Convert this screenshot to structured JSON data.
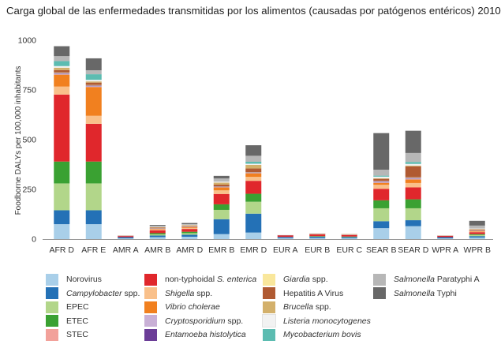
{
  "chart_data": {
    "type": "bar",
    "stacked": true,
    "title": "Carga global de las enfermedades transmitidas por los alimentos (causadas por patógenos entéricos) 2010",
    "ylabel": "Foodborne DALYs per 100,000 inhabitants",
    "xlabel": "",
    "ylim": [
      0,
      1000
    ],
    "yticks": [
      "0",
      "250",
      "500",
      "750",
      "1000"
    ],
    "categories": [
      "AFR D",
      "AFR E",
      "AMR A",
      "AMR B",
      "AMR D",
      "EMR B",
      "EMR D",
      "EUR A",
      "EUR B",
      "EUR C",
      "SEAR B",
      "SEAR D",
      "WPR A",
      "WPR B"
    ],
    "series": [
      {
        "name": "Norovirus",
        "color": "#a9cfe9",
        "values": [
          75,
          75,
          4,
          10,
          12,
          25,
          33,
          5,
          6,
          5,
          55,
          65,
          4,
          8
        ]
      },
      {
        "name": "Campylobacter spp.",
        "color": "#2471b6",
        "values": [
          70,
          70,
          6,
          8,
          10,
          75,
          95,
          6,
          7,
          6,
          35,
          30,
          6,
          7
        ]
      },
      {
        "name": "EPEC",
        "color": "#b2d68a",
        "values": [
          135,
          135,
          0,
          6,
          8,
          47,
          60,
          0,
          1,
          1,
          65,
          60,
          0,
          6
        ]
      },
      {
        "name": "ETEC",
        "color": "#3aa132",
        "values": [
          110,
          110,
          0,
          6,
          7,
          28,
          40,
          0,
          1,
          1,
          40,
          45,
          0,
          4
        ]
      },
      {
        "name": "STEC",
        "color": "#f2a19a",
        "values": [
          0,
          0,
          0,
          0,
          0,
          0,
          0,
          0,
          0,
          0,
          0,
          0,
          0,
          0
        ]
      },
      {
        "name": "non-typhoidal S. enterica",
        "color": "#e0272c",
        "values": [
          337,
          190,
          6,
          14,
          14,
          52,
          65,
          8,
          9,
          8,
          58,
          60,
          7,
          10
        ]
      },
      {
        "name": "Shigella spp.",
        "color": "#f9c08a",
        "values": [
          40,
          40,
          0,
          4,
          5,
          18,
          20,
          0,
          1,
          1,
          20,
          22,
          0,
          3
        ]
      },
      {
        "name": "Vibrio cholerae",
        "color": "#f1801f",
        "values": [
          60,
          145,
          0,
          3,
          4,
          15,
          18,
          0,
          0,
          0,
          10,
          18,
          0,
          3
        ]
      },
      {
        "name": "Cryptosporidium spp.",
        "color": "#c9b0d6",
        "values": [
          5,
          4,
          1,
          2,
          2,
          2,
          2,
          1,
          1,
          1,
          5,
          5,
          0,
          1
        ]
      },
      {
        "name": "Entamoeba histolytica",
        "color": "#6b3d97",
        "values": [
          3,
          3,
          0,
          1,
          1,
          2,
          2,
          0,
          0,
          0,
          3,
          3,
          0,
          1
        ]
      },
      {
        "name": "Giardia spp.",
        "color": "#f9e79c",
        "values": [
          3,
          3,
          0,
          1,
          1,
          2,
          2,
          0,
          0,
          0,
          2,
          3,
          0,
          1
        ]
      },
      {
        "name": "Hepatitis A Virus",
        "color": "#b05a32",
        "values": [
          12,
          12,
          1,
          3,
          3,
          8,
          18,
          1,
          2,
          2,
          10,
          55,
          1,
          4
        ]
      },
      {
        "name": "Brucella spp.",
        "color": "#d3b06b",
        "values": [
          12,
          6,
          0,
          2,
          3,
          10,
          18,
          0,
          1,
          1,
          3,
          4,
          0,
          2
        ]
      },
      {
        "name": "Listeria monocytogenes",
        "color": "#f2f2f2",
        "values": [
          8,
          8,
          1,
          2,
          2,
          5,
          6,
          1,
          1,
          1,
          8,
          8,
          1,
          3
        ]
      },
      {
        "name": "Mycobacterium bovis",
        "color": "#5cbcb1",
        "values": [
          25,
          28,
          0,
          0,
          0,
          0,
          10,
          0,
          0,
          0,
          5,
          10,
          0,
          0
        ]
      },
      {
        "name": "Salmonella Paratyphi A",
        "color": "#b7b7b7",
        "values": [
          25,
          20,
          0,
          4,
          3,
          16,
          30,
          0,
          0,
          0,
          30,
          45,
          0,
          15
        ]
      },
      {
        "name": "Salmonella Typhi",
        "color": "#686868",
        "values": [
          50,
          60,
          0,
          5,
          6,
          13,
          53,
          0,
          0,
          0,
          184,
          112,
          0,
          24
        ]
      }
    ]
  },
  "legend_items": [
    {
      "plain": "Norovirus",
      "italic": "",
      "rest": ""
    },
    {
      "plain": "",
      "italic": "Campylobacter",
      "rest": " spp."
    },
    {
      "plain": "EPEC",
      "italic": "",
      "rest": ""
    },
    {
      "plain": "ETEC",
      "italic": "",
      "rest": ""
    },
    {
      "plain": "STEC",
      "italic": "",
      "rest": ""
    },
    {
      "plain": "non-typhoidal ",
      "italic": "S. enterica",
      "rest": ""
    },
    {
      "plain": "",
      "italic": "Shigella",
      "rest": " spp."
    },
    {
      "plain": "",
      "italic": "Vibrio cholerae",
      "rest": ""
    },
    {
      "plain": "",
      "italic": "Cryptosporidium",
      "rest": " spp."
    },
    {
      "plain": "",
      "italic": "Entamoeba histolytica",
      "rest": ""
    },
    {
      "plain": "",
      "italic": "Giardia",
      "rest": " spp."
    },
    {
      "plain": "Hepatitis A Virus",
      "italic": "",
      "rest": ""
    },
    {
      "plain": "",
      "italic": "Brucella",
      "rest": " spp."
    },
    {
      "plain": "",
      "italic": "Listeria monocytogenes",
      "rest": ""
    },
    {
      "plain": "",
      "italic": "Mycobacterium bovis",
      "rest": ""
    },
    {
      "plain": "",
      "italic": "Salmonella",
      "rest": " Paratyphi A"
    },
    {
      "plain": "",
      "italic": "Salmonella",
      "rest": " Typhi"
    }
  ]
}
